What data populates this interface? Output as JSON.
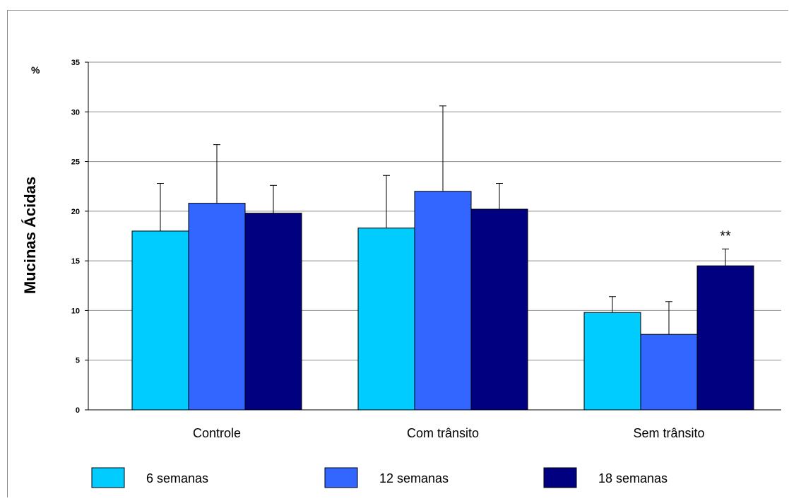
{
  "chart_data": {
    "type": "bar",
    "ylabel": "Mucinas Ácidas",
    "unit_label": "%",
    "xlabel": "",
    "ylim": [
      0,
      35
    ],
    "yticks": [
      0,
      5,
      10,
      15,
      20,
      25,
      30,
      35
    ],
    "grid": true,
    "legend_position": "bottom",
    "categories": [
      "Controle",
      "Com trânsito",
      "Sem trânsito"
    ],
    "series": [
      {
        "name": "6 semanas",
        "color": "#00ccff",
        "values": [
          18.0,
          18.3,
          9.8
        ],
        "errors": [
          4.8,
          5.3,
          1.6
        ]
      },
      {
        "name": "12 semanas",
        "color": "#3366ff",
        "values": [
          20.8,
          22.0,
          7.6
        ],
        "errors": [
          5.9,
          8.6,
          3.3
        ]
      },
      {
        "name": "18 semanas",
        "color": "#000080",
        "values": [
          19.8,
          20.2,
          14.5
        ],
        "errors": [
          2.8,
          2.6,
          1.7
        ]
      }
    ],
    "annotations": [
      {
        "text": "**",
        "category": "Sem trânsito",
        "series": "18 semanas"
      }
    ]
  }
}
